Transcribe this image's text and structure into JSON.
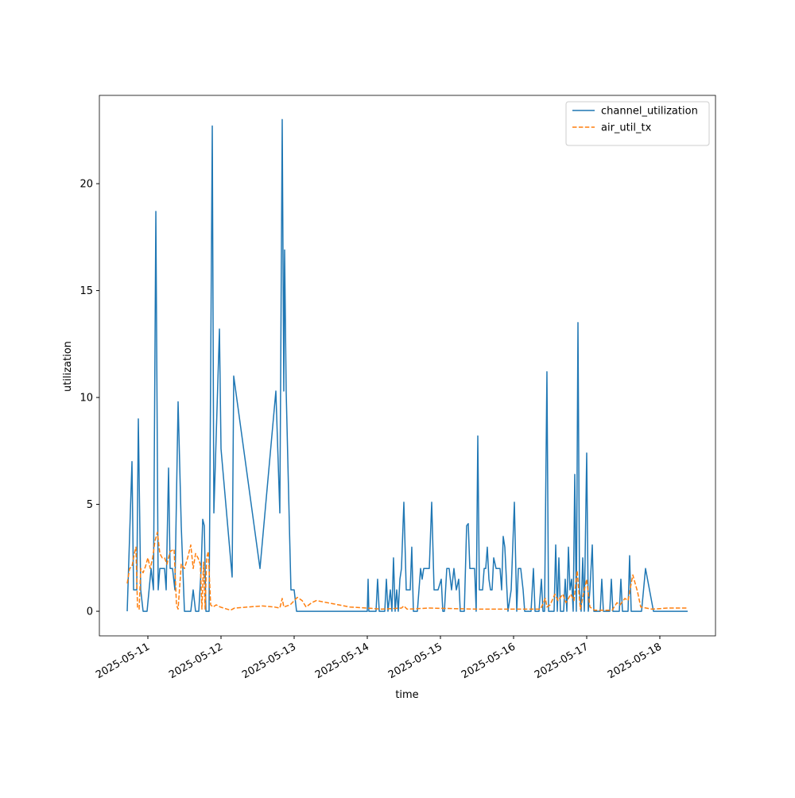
{
  "chart_data": {
    "type": "line",
    "xlabel": "time",
    "ylabel": "utilization",
    "xlim": [
      "2025-05-10 08:05",
      "2025-05-18 18:16"
    ],
    "xticks": [
      "2025-05-11",
      "2025-05-12",
      "2025-05-13",
      "2025-05-14",
      "2025-05-15",
      "2025-05-16",
      "2025-05-17",
      "2025-05-18"
    ],
    "ylim": [
      -1.15,
      24.13
    ],
    "yticks": [
      0,
      5,
      10,
      15,
      20
    ],
    "legend": "upper right",
    "series": [
      {
        "name": "channel_utilization",
        "color": "#1f77b4",
        "linestyle": "solid",
        "x": [
          "2025-05-10 17:13",
          "2025-05-10 18:47",
          "2025-05-10 19:18",
          "2025-05-10 20:21",
          "2025-05-10 20:52",
          "2025-05-10 21:39",
          "2025-05-10 22:26",
          "2025-05-10 23:44",
          "2025-05-11 01:03",
          "2025-05-11 01:50",
          "2025-05-11 02:37",
          "2025-05-11 03:23",
          "2025-05-11 03:55",
          "2025-05-11 05:29",
          "2025-05-11 06:00",
          "2025-05-11 06:47",
          "2025-05-11 07:18",
          "2025-05-11 08:05",
          "2025-05-11 08:52",
          "2025-05-11 09:55",
          "2025-05-11 10:57",
          "2025-05-11 12:00",
          "2025-05-11 14:05",
          "2025-05-11 14:52",
          "2025-05-11 15:39",
          "2025-05-11 16:42",
          "2025-05-11 17:29",
          "2025-05-11 18:00",
          "2025-05-11 18:31",
          "2025-05-11 19:03",
          "2025-05-11 20:05",
          "2025-05-11 21:08",
          "2025-05-11 21:39",
          "2025-05-11 22:10",
          "2025-05-11 23:29",
          "2025-05-12 00:00",
          "2025-05-12 03:39",
          "2025-05-12 04:10",
          "2025-05-12 12:47",
          "2025-05-12 18:00",
          "2025-05-12 19:18",
          "2025-05-12 20:05",
          "2025-05-12 20:36",
          "2025-05-12 20:52",
          "2025-05-12 21:23",
          "2025-05-12 22:26",
          "2025-05-12 22:57",
          "2025-05-13 00:00",
          "2025-05-13 00:47",
          "2025-05-14 00:00",
          "2025-05-14 00:16",
          "2025-05-14 00:31",
          "2025-05-14 02:52",
          "2025-05-14 03:23",
          "2025-05-14 03:55",
          "2025-05-14 05:44",
          "2025-05-14 06:16",
          "2025-05-14 06:47",
          "2025-05-14 07:34",
          "2025-05-14 08:05",
          "2025-05-14 08:36",
          "2025-05-14 09:08",
          "2025-05-14 09:39",
          "2025-05-14 10:10",
          "2025-05-14 10:42",
          "2025-05-14 11:13",
          "2025-05-14 12:00",
          "2025-05-14 12:47",
          "2025-05-14 14:05",
          "2025-05-14 14:36",
          "2025-05-14 15:08",
          "2025-05-14 16:26",
          "2025-05-14 17:29",
          "2025-05-14 18:00",
          "2025-05-14 18:31",
          "2025-05-14 20:21",
          "2025-05-14 21:08",
          "2025-05-14 21:55",
          "2025-05-14 23:13",
          "2025-05-15 00:16",
          "2025-05-15 00:47",
          "2025-05-15 01:18",
          "2025-05-15 02:05",
          "2025-05-15 02:52",
          "2025-05-15 03:39",
          "2025-05-15 04:26",
          "2025-05-15 05:13",
          "2025-05-15 06:00",
          "2025-05-15 06:31",
          "2025-05-15 07:50",
          "2025-05-15 08:36",
          "2025-05-15 09:08",
          "2025-05-15 09:39",
          "2025-05-15 11:13",
          "2025-05-15 11:44",
          "2025-05-15 12:16",
          "2025-05-15 12:47",
          "2025-05-15 13:50",
          "2025-05-15 14:21",
          "2025-05-15 14:52",
          "2025-05-15 15:23",
          "2025-05-15 15:55",
          "2025-05-15 16:26",
          "2025-05-15 16:57",
          "2025-05-15 17:29",
          "2025-05-15 18:16",
          "2025-05-15 19:34",
          "2025-05-15 20:05",
          "2025-05-15 20:36",
          "2025-05-15 21:08",
          "2025-05-15 21:39",
          "2025-05-15 22:10",
          "2025-05-15 23:13",
          "2025-05-16 00:16",
          "2025-05-16 01:03",
          "2025-05-16 01:34",
          "2025-05-16 02:21",
          "2025-05-16 03:08",
          "2025-05-16 03:39",
          "2025-05-16 05:44",
          "2025-05-16 06:31",
          "2025-05-16 07:03",
          "2025-05-16 08:21",
          "2025-05-16 09:08",
          "2025-05-16 09:39",
          "2025-05-16 10:10",
          "2025-05-16 10:57",
          "2025-05-16 11:29",
          "2025-05-16 13:18",
          "2025-05-16 13:50",
          "2025-05-16 14:21",
          "2025-05-16 14:52",
          "2025-05-16 15:23",
          "2025-05-16 16:26",
          "2025-05-16 16:57",
          "2025-05-16 17:29",
          "2025-05-16 18:00",
          "2025-05-16 18:31",
          "2025-05-16 19:03",
          "2025-05-16 19:34",
          "2025-05-16 20:05",
          "2025-05-16 20:36",
          "2025-05-16 21:08",
          "2025-05-16 21:39",
          "2025-05-16 22:10",
          "2025-05-16 22:42",
          "2025-05-16 23:13",
          "2025-05-17 00:00",
          "2025-05-17 00:31",
          "2025-05-17 01:03",
          "2025-05-17 01:50",
          "2025-05-17 02:21",
          "2025-05-17 04:26",
          "2025-05-17 04:57",
          "2025-05-17 05:29",
          "2025-05-17 07:34",
          "2025-05-17 08:05",
          "2025-05-17 08:36",
          "2025-05-17 10:42",
          "2025-05-17 11:13",
          "2025-05-17 11:44",
          "2025-05-17 13:34",
          "2025-05-17 14:05",
          "2025-05-17 14:36",
          "2025-05-17 18:00",
          "2025-05-17 19:18",
          "2025-05-17 21:55",
          "2025-05-18 09:08"
        ],
        "values": [
          0,
          7,
          1,
          1,
          9,
          1,
          0,
          0,
          2,
          1,
          18.7,
          1,
          2,
          2,
          1,
          6.7,
          2,
          2,
          1,
          9.8,
          4,
          0,
          0,
          1,
          0,
          0,
          2,
          4.3,
          4,
          0,
          0,
          22.7,
          4.6,
          7,
          13.2,
          7.6,
          1.6,
          11,
          2,
          10.3,
          4.6,
          23,
          10.3,
          16.9,
          10.3,
          4,
          1,
          1,
          0,
          0,
          1.5,
          0,
          0,
          1.5,
          0,
          0,
          1.5,
          0,
          1,
          0,
          2.5,
          0,
          1,
          0,
          1.5,
          2,
          5.1,
          1,
          1,
          3,
          0,
          0,
          2,
          1.5,
          2,
          2,
          5.1,
          1,
          1,
          1.5,
          0,
          0,
          2,
          2,
          1,
          2,
          1,
          1.5,
          0,
          0,
          4,
          4.1,
          2,
          2,
          0,
          8.2,
          1,
          1,
          2,
          2,
          3,
          1.5,
          1,
          1,
          2.5,
          2,
          2,
          1,
          3.5,
          3,
          1.5,
          0,
          1,
          5.1,
          0,
          2,
          2,
          1,
          0,
          0,
          2,
          0,
          0,
          1.5,
          0,
          0,
          11.2,
          0,
          0,
          3.1,
          0,
          2.5,
          0,
          0,
          1.5,
          0,
          3,
          1,
          1.5,
          0,
          6.4,
          0,
          13.5,
          1,
          0,
          2.5,
          0,
          7.4,
          0,
          1,
          3.1,
          0,
          0,
          1.5,
          0,
          0,
          1.5,
          0,
          0,
          1.5,
          0,
          0,
          2.6,
          0,
          0,
          2,
          0,
          0
        ]
      },
      {
        "name": "air_util_tx",
        "color": "#ff7f0e",
        "linestyle": "dashed",
        "x": [
          "2025-05-10 17:13",
          "2025-05-10 18:00",
          "2025-05-10 18:47",
          "2025-05-10 19:34",
          "2025-05-10 20:05",
          "2025-05-10 20:36",
          "2025-05-10 21:08",
          "2025-05-10 21:39",
          "2025-05-10 22:26",
          "2025-05-10 23:13",
          "2025-05-11 00:00",
          "2025-05-11 00:47",
          "2025-05-11 01:34",
          "2025-05-11 02:21",
          "2025-05-11 03:08",
          "2025-05-11 03:55",
          "2025-05-11 04:42",
          "2025-05-11 05:29",
          "2025-05-11 06:16",
          "2025-05-11 07:18",
          "2025-05-11 08:36",
          "2025-05-11 09:23",
          "2025-05-11 09:55",
          "2025-05-11 10:57",
          "2025-05-11 12:00",
          "2025-05-11 13:03",
          "2025-05-11 14:05",
          "2025-05-11 14:52",
          "2025-05-11 15:39",
          "2025-05-11 16:26",
          "2025-05-11 17:13",
          "2025-05-11 17:44",
          "2025-05-11 18:16",
          "2025-05-11 18:47",
          "2025-05-11 19:18",
          "2025-05-11 19:49",
          "2025-05-11 20:36",
          "2025-05-11 21:23",
          "2025-05-11 22:26",
          "2025-05-11 23:44",
          "2025-05-12 03:08",
          "2025-05-12 04:26",
          "2025-05-12 13:34",
          "2025-05-12 17:29",
          "2025-05-12 19:18",
          "2025-05-12 20:05",
          "2025-05-12 20:36",
          "2025-05-12 22:42",
          "2025-05-13 01:03",
          "2025-05-13 02:37",
          "2025-05-13 03:55",
          "2025-05-13 05:44",
          "2025-05-13 07:18",
          "2025-05-13 18:16",
          "2025-05-14 00:00",
          "2025-05-14 04:42",
          "2025-05-14 11:13",
          "2025-05-14 12:00",
          "2025-05-14 13:03",
          "2025-05-14 20:21",
          "2025-05-15 12:00",
          "2025-05-16 00:00",
          "2025-05-16 08:52",
          "2025-05-16 10:26",
          "2025-05-16 10:57",
          "2025-05-16 12:00",
          "2025-05-16 13:34",
          "2025-05-16 14:36",
          "2025-05-16 16:10",
          "2025-05-16 17:13",
          "2025-05-16 18:47",
          "2025-05-16 19:49",
          "2025-05-16 20:52",
          "2025-05-16 21:55",
          "2025-05-16 23:13",
          "2025-05-17 00:00",
          "2025-05-17 01:03",
          "2025-05-17 02:37",
          "2025-05-17 08:21",
          "2025-05-17 09:55",
          "2025-05-17 10:57",
          "2025-05-17 12:31",
          "2025-05-17 13:34",
          "2025-05-17 15:08",
          "2025-05-17 16:42",
          "2025-05-17 17:44",
          "2025-05-17 21:23",
          "2025-05-18 02:37",
          "2025-05-18 09:08"
        ],
        "values": [
          1.3,
          2,
          2.1,
          2.7,
          3,
          0.2,
          0.1,
          2,
          1.8,
          2.1,
          2.5,
          2,
          2.5,
          3.3,
          3.7,
          2.7,
          2.5,
          2.5,
          2.2,
          2.8,
          2.9,
          0.3,
          0.1,
          2.2,
          2,
          2.5,
          3.1,
          2,
          2.7,
          2.5,
          2.2,
          0.1,
          2.3,
          0.1,
          2.5,
          2.8,
          0.3,
          0.2,
          0.3,
          0.2,
          0.05,
          0.15,
          0.25,
          0.2,
          0.15,
          0.6,
          0.2,
          0.3,
          0.65,
          0.5,
          0.2,
          0.4,
          0.5,
          0.2,
          0.15,
          0.1,
          0.15,
          0.25,
          0.1,
          0.15,
          0.1,
          0.1,
          0.1,
          0.6,
          0.2,
          0.3,
          0.8,
          0.5,
          0.8,
          0.4,
          0.8,
          0.5,
          1.9,
          0.1,
          1,
          1.5,
          0.2,
          0.05,
          0.05,
          0.4,
          0.3,
          0.6,
          0.5,
          1.7,
          0.9,
          0.2,
          0.1,
          0.15,
          0.15
        ]
      }
    ]
  }
}
